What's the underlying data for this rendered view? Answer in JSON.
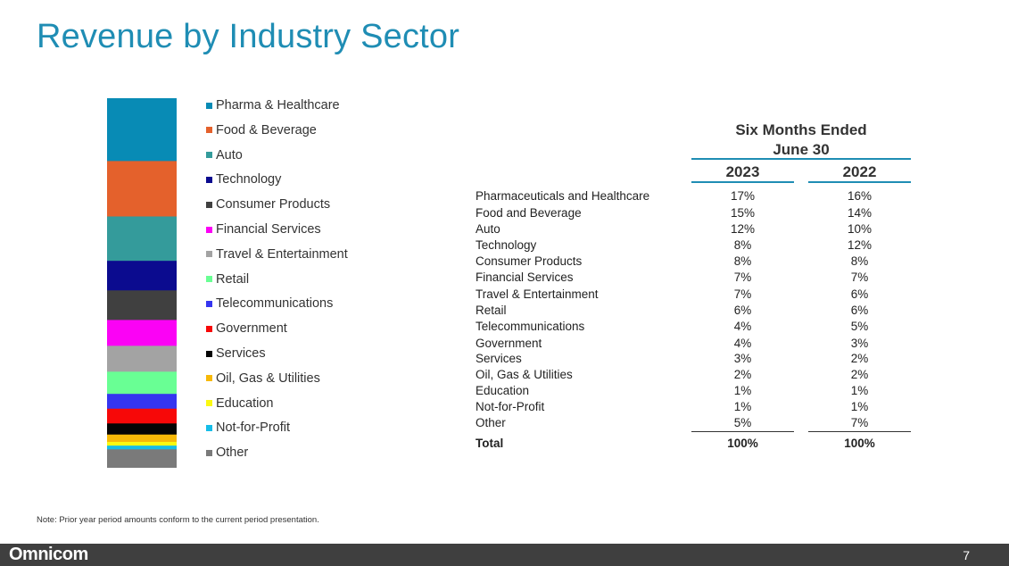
{
  "title": "Revenue by Industry Sector",
  "legend": [
    {
      "label": "Pharma & Healthcare",
      "color": "#088bb5"
    },
    {
      "label": "Food & Beverage",
      "color": "#e4612c"
    },
    {
      "label": "Auto",
      "color": "#349b9b"
    },
    {
      "label": "Technology",
      "color": "#0b0b8f"
    },
    {
      "label": "Consumer Products",
      "color": "#404040"
    },
    {
      "label": "Financial Services",
      "color": "#fb02f5"
    },
    {
      "label": "Travel & Entertainment",
      "color": "#a3a3a3"
    },
    {
      "label": "Retail",
      "color": "#69ff94"
    },
    {
      "label": "Telecommunications",
      "color": "#3535f0"
    },
    {
      "label": "Government",
      "color": "#f70808"
    },
    {
      "label": "Services",
      "color": "#050505"
    },
    {
      "label": "Oil, Gas & Utilities",
      "color": "#f7b908"
    },
    {
      "label": "Education",
      "color": "#fbf912"
    },
    {
      "label": "Not-for-Profit",
      "color": "#16bde8"
    },
    {
      "label": "Other",
      "color": "#7a7a7a"
    }
  ],
  "chart_data": {
    "type": "bar",
    "stacked": true,
    "series_name": "2023",
    "categories": [
      "Pharma & Healthcare",
      "Food & Beverage",
      "Auto",
      "Technology",
      "Consumer Products",
      "Financial Services",
      "Travel & Entertainment",
      "Retail",
      "Telecommunications",
      "Government",
      "Services",
      "Oil, Gas & Utilities",
      "Education",
      "Not-for-Profit",
      "Other"
    ],
    "values": [
      17,
      15,
      12,
      8,
      8,
      7,
      7,
      6,
      4,
      4,
      3,
      2,
      1,
      1,
      5
    ],
    "unit": "%"
  },
  "table": {
    "header_line1": "Six Months Ended",
    "header_line2": "June 30",
    "col1": "2023",
    "col2": "2022",
    "rows": [
      {
        "label": "Pharmaceuticals and Healthcare",
        "v2023": "17%",
        "v2022": "16%"
      },
      {
        "label": "Food and Beverage",
        "v2023": "15%",
        "v2022": "14%"
      },
      {
        "label": "Auto",
        "v2023": "12%",
        "v2022": "10%"
      },
      {
        "label": "Technology",
        "v2023": "8%",
        "v2022": "12%"
      },
      {
        "label": "Consumer Products",
        "v2023": "8%",
        "v2022": "8%"
      },
      {
        "label": "Financial Services",
        "v2023": "7%",
        "v2022": "7%"
      },
      {
        "label": "Travel & Entertainment",
        "v2023": "7%",
        "v2022": "6%"
      },
      {
        "label": "Retail",
        "v2023": "6%",
        "v2022": "6%"
      },
      {
        "label": "Telecommunications",
        "v2023": "4%",
        "v2022": "5%"
      },
      {
        "label": "Government",
        "v2023": "4%",
        "v2022": "3%"
      },
      {
        "label": "Services",
        "v2023": "3%",
        "v2022": "2%"
      },
      {
        "label": "Oil, Gas & Utilities",
        "v2023": "2%",
        "v2022": "2%"
      },
      {
        "label": "Education",
        "v2023": "1%",
        "v2022": "1%"
      },
      {
        "label": "Not-for-Profit",
        "v2023": "1%",
        "v2022": "1%"
      },
      {
        "label": "Other",
        "v2023": "5%",
        "v2022": "7%"
      }
    ],
    "total_label": "Total",
    "total_2023": "100%",
    "total_2022": "100%"
  },
  "note": "Note:  Prior year period amounts conform to the current period presentation.",
  "footer": {
    "logo": "Omnicom",
    "page": "7"
  }
}
